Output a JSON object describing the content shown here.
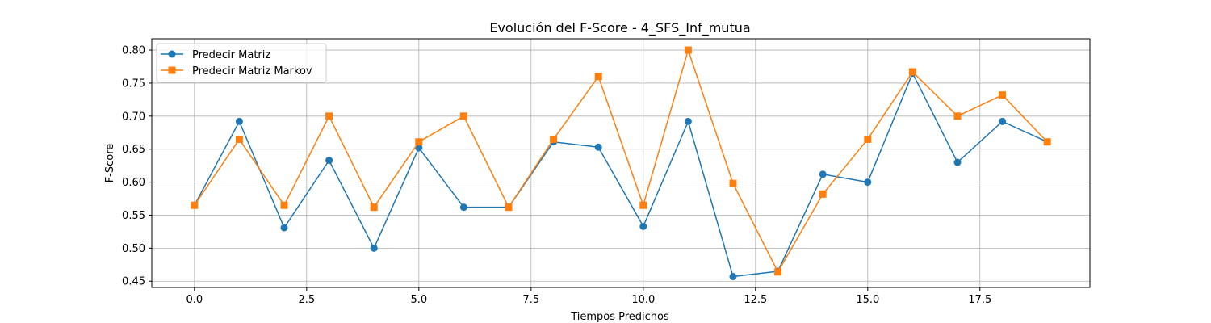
{
  "chart_data": {
    "type": "line",
    "title": "Evolución del F-Score - 4_SFS_Inf_mutua",
    "xlabel": "Tiempos Predichos",
    "ylabel": "F-Score",
    "xlim": [
      -0.95,
      19.95
    ],
    "ylim": [
      0.4405,
      0.8172
    ],
    "xticks": [
      0.0,
      2.5,
      5.0,
      7.5,
      10.0,
      12.5,
      15.0,
      17.5
    ],
    "xtick_labels": [
      "0.0",
      "2.5",
      "5.0",
      "7.5",
      "10.0",
      "12.5",
      "15.0",
      "17.5"
    ],
    "yticks": [
      0.45,
      0.5,
      0.55,
      0.6,
      0.65,
      0.7,
      0.75,
      0.8
    ],
    "ytick_labels": [
      "0.45",
      "0.50",
      "0.55",
      "0.60",
      "0.65",
      "0.70",
      "0.75",
      "0.80"
    ],
    "grid": true,
    "legend_position": "top-left",
    "x": [
      0,
      1,
      2,
      3,
      4,
      5,
      6,
      7,
      8,
      9,
      10,
      11,
      12,
      13,
      14,
      15,
      16,
      17,
      18,
      19
    ],
    "series": [
      {
        "name": "Predecir Matriz",
        "color": "#1f77b4",
        "marker": "circle",
        "values": [
          0.565,
          0.692,
          0.531,
          0.633,
          0.5,
          0.652,
          0.562,
          0.562,
          0.661,
          0.653,
          0.533,
          0.692,
          0.457,
          0.465,
          0.612,
          0.6,
          0.765,
          0.63,
          0.692,
          0.661
        ]
      },
      {
        "name": "Predecir Matriz Markov",
        "color": "#ff7f0e",
        "marker": "square",
        "values": [
          0.565,
          0.665,
          0.565,
          0.7,
          0.562,
          0.661,
          0.7,
          0.562,
          0.665,
          0.76,
          0.565,
          0.8,
          0.598,
          0.464,
          0.582,
          0.665,
          0.767,
          0.7,
          0.732,
          0.661
        ]
      }
    ]
  }
}
